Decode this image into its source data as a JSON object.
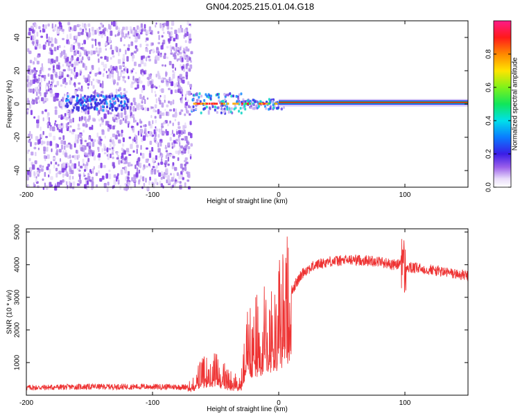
{
  "page": {
    "title": "GN04.2025.215.01.04.G18"
  },
  "chart_data": [
    {
      "type": "heatmap",
      "xlabel": "Height of straight line (km)",
      "ylabel": "Frequency (Hz)",
      "xlim": [
        -200,
        150
      ],
      "ylim": [
        -50,
        50
      ],
      "xticks": [
        -200,
        -100,
        0,
        100
      ],
      "yticks": [
        -40,
        -20,
        0,
        20,
        40
      ],
      "colorbar": {
        "label": "Normalized spectral amplitude",
        "range": [
          0,
          1
        ],
        "ticks": [
          0.0,
          0.2,
          0.4,
          0.6,
          0.8
        ],
        "tick_labels": [
          "0.0",
          "0.2",
          "0.4",
          "0.6",
          "0.8"
        ]
      },
      "regions": [
        {
          "x_range": [
            -200,
            -70
          ],
          "description": "broadband noise",
          "amplitude": 0.1
        },
        {
          "x_range": [
            -70,
            5
          ],
          "center_freq_hz": 0,
          "amplitude": 0.5
        },
        {
          "x_range": [
            5,
            150
          ],
          "center_freq_hz": 1,
          "amplitude": 0.95
        }
      ],
      "colors": {
        "noise": "#8a2be2",
        "band_edge": "#1f3fff",
        "band_core": "#ff0000"
      }
    },
    {
      "type": "line",
      "xlabel": "Height of straight line (km)",
      "ylabel": "SNR (10 * v/v)",
      "xlim": [
        -200,
        150
      ],
      "ylim": [
        0,
        5100
      ],
      "xticks": [
        -200,
        -100,
        0,
        100
      ],
      "yticks": [
        1000,
        2000,
        3000,
        4000,
        5000
      ],
      "series": [
        {
          "color": "#ee3333",
          "x": [
            -200,
            -150,
            -100,
            -75,
            -70,
            -60,
            -50,
            -40,
            -30,
            -25,
            -15,
            -5,
            0,
            10,
            20,
            30,
            40,
            60,
            80,
            90,
            95,
            98,
            100,
            102,
            105,
            120,
            150
          ],
          "y": [
            230,
            260,
            260,
            250,
            300,
            700,
            800,
            500,
            350,
            1600,
            1900,
            2300,
            2500,
            3200,
            3800,
            4000,
            4100,
            4150,
            4100,
            4000,
            4000,
            4200,
            3800,
            3900,
            3900,
            3850,
            3650
          ]
        }
      ]
    }
  ]
}
